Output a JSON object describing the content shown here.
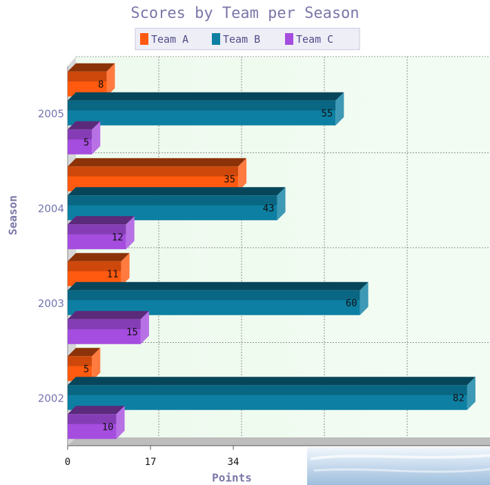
{
  "chart_data": {
    "type": "bar",
    "orientation": "horizontal",
    "title": "Scores by Team per Season",
    "xlabel": "Points",
    "ylabel": "Season",
    "categories": [
      "2002",
      "2003",
      "2004",
      "2005"
    ],
    "series": [
      {
        "name": "Team A",
        "values": [
          5,
          11,
          35,
          8
        ],
        "color": "#ff5a0f"
      },
      {
        "name": "Team B",
        "values": [
          82,
          60,
          43,
          55
        ],
        "color": "#0d7fa3"
      },
      {
        "name": "Team C",
        "values": [
          10,
          15,
          12,
          5
        ],
        "color": "#a54ddf"
      }
    ],
    "xticks": [
      "0",
      "17",
      "34"
    ],
    "xlim": [
      0,
      85
    ],
    "legend": "top",
    "grid": true,
    "style_3d": true
  }
}
